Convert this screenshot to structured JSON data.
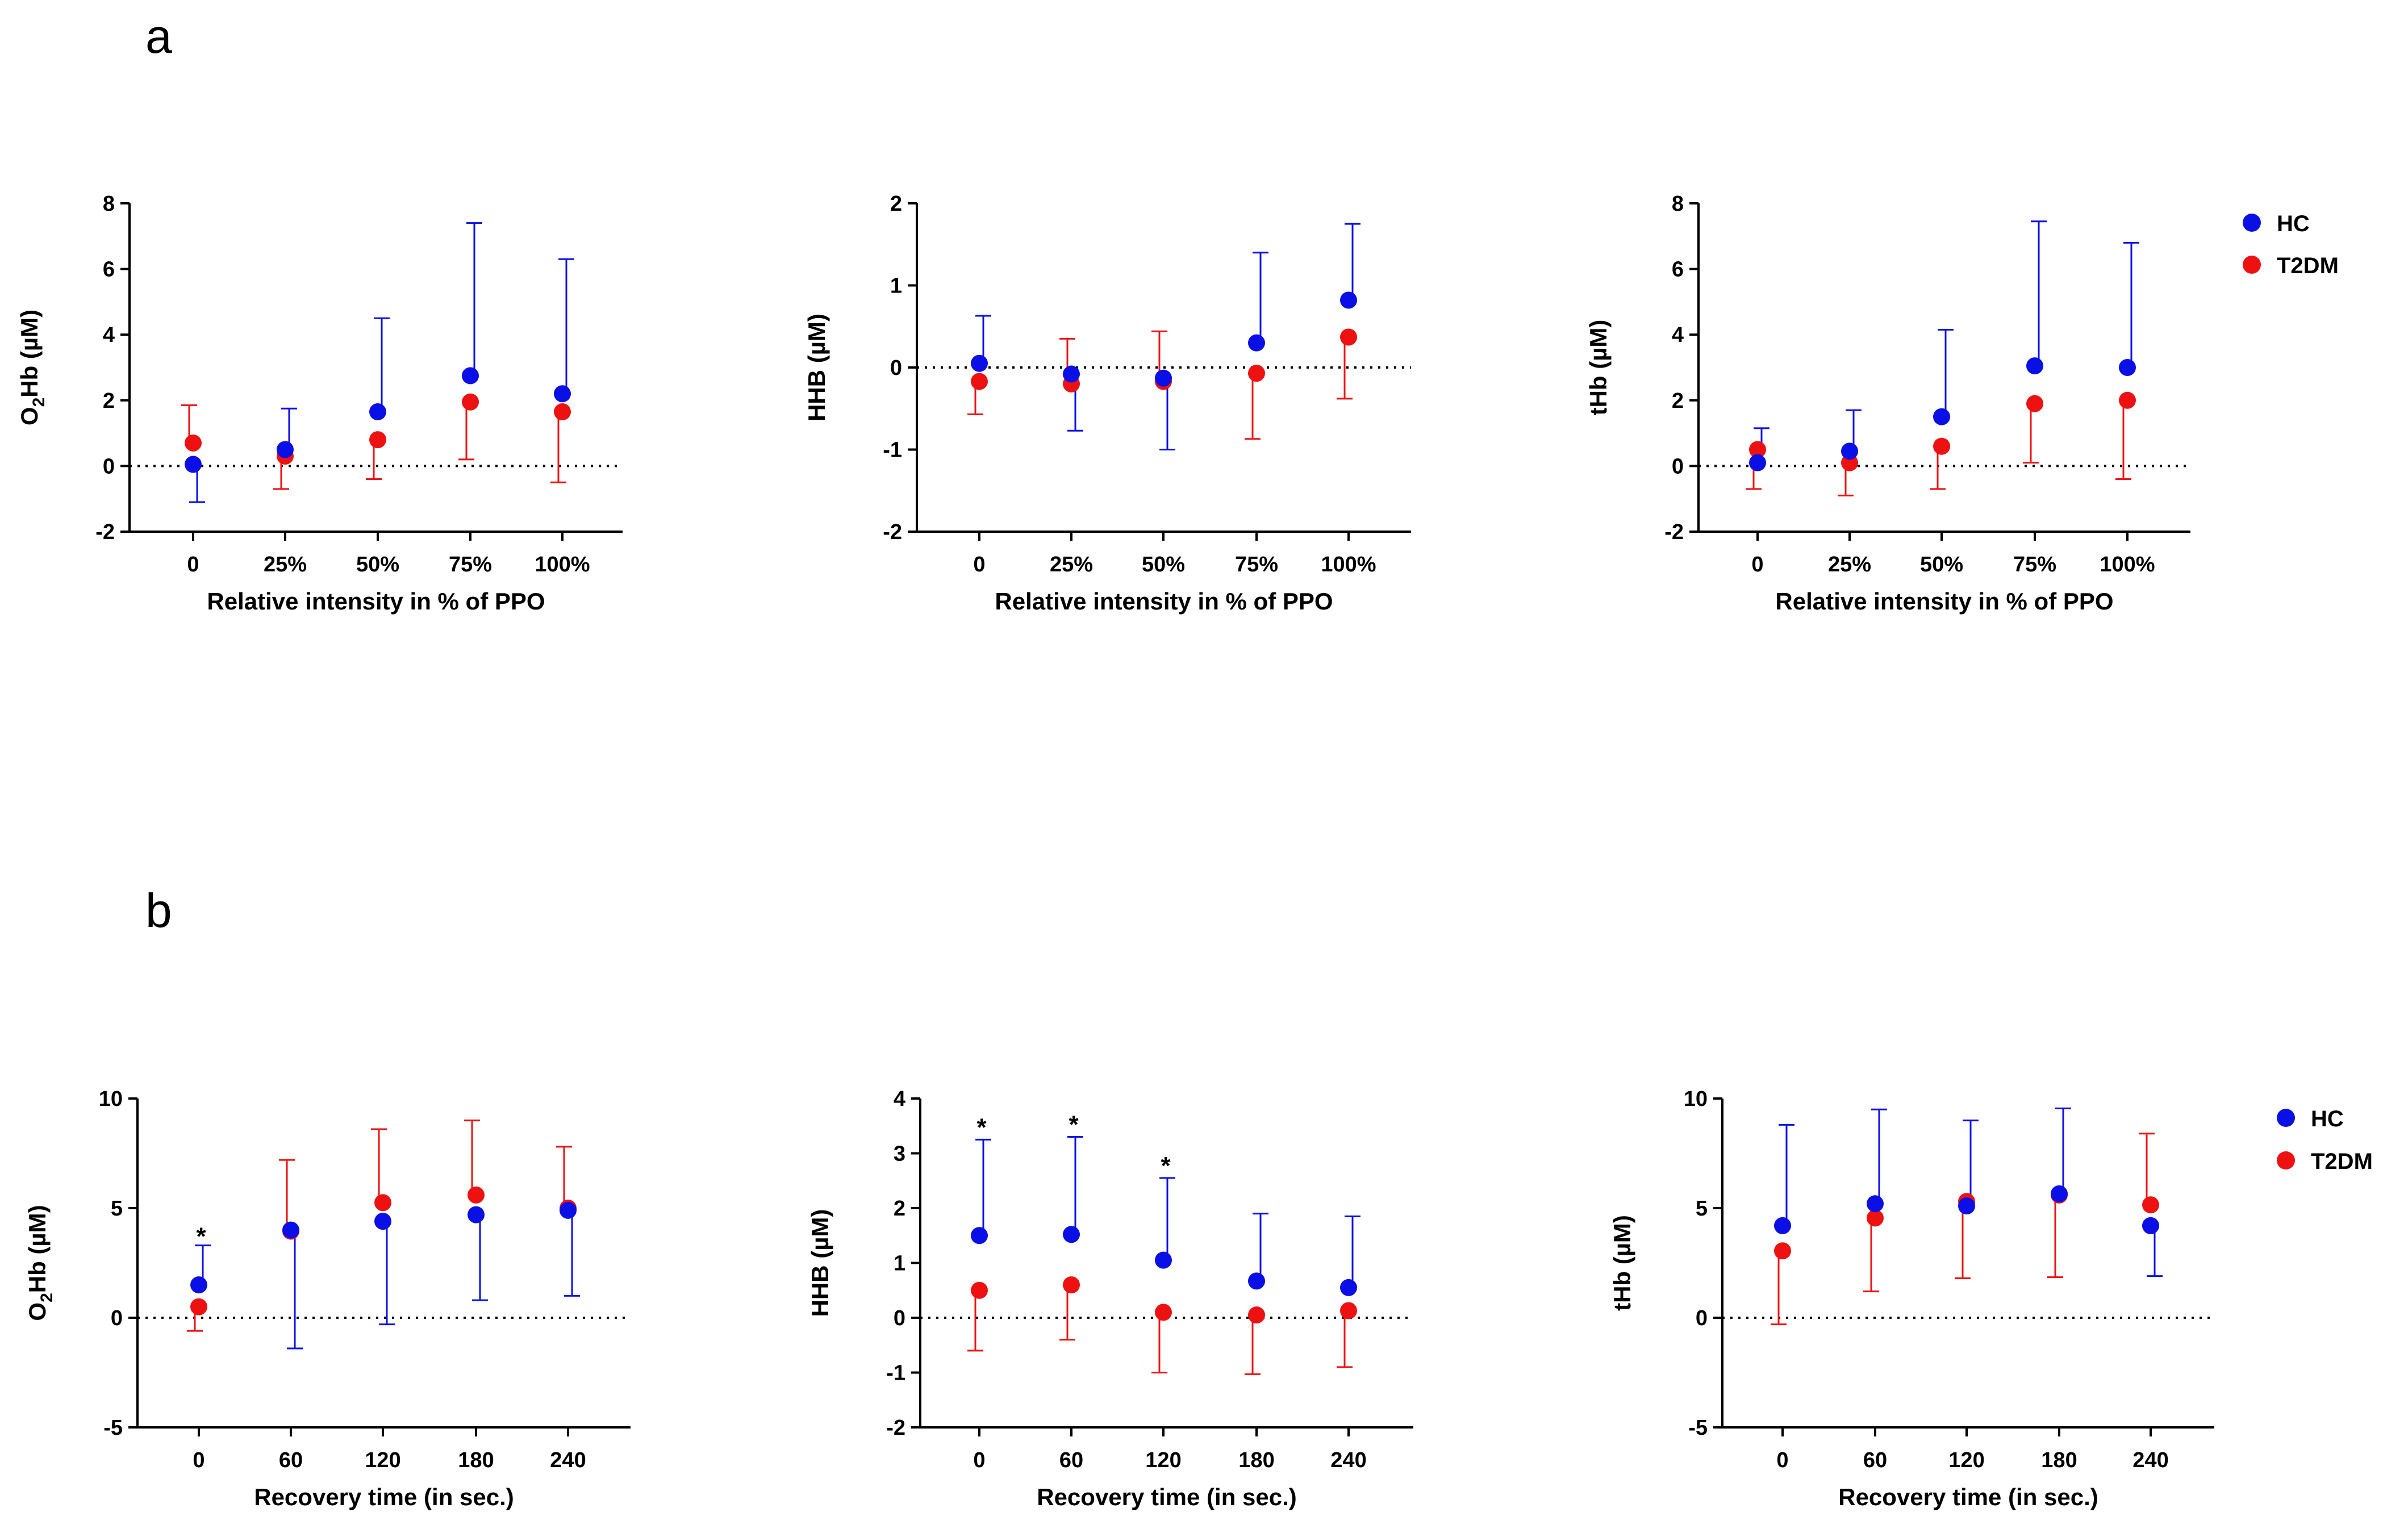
{
  "figure": {
    "panel_labels": [
      "a",
      "b"
    ],
    "legend": [
      {
        "label": "HC",
        "color": "#0a0fe6"
      },
      {
        "label": "T2DM",
        "color": "#ee1111"
      }
    ]
  },
  "chart_data": [
    {
      "id": "a1",
      "type": "scatter",
      "title": "",
      "xlabel": "Relative intensity in % of PPO",
      "ylabel": [
        "O",
        "2",
        "Hb (µM)"
      ],
      "categories": [
        "0",
        "25%",
        "50%",
        "75%",
        "100%"
      ],
      "ylim": [
        -2,
        8
      ],
      "yticks": [
        -2,
        0,
        2,
        4,
        6,
        8
      ],
      "ytick_labels": [
        "-2",
        "0",
        "2",
        "4",
        "6",
        "8"
      ],
      "reference_line": 0,
      "series": [
        {
          "name": "HC",
          "color": "#0a0fe6",
          "values": [
            0.05,
            0.5,
            1.65,
            2.75,
            2.2
          ],
          "err_low": [
            -1.1,
            null,
            null,
            null,
            null
          ],
          "err_high": [
            null,
            1.75,
            4.5,
            7.4,
            6.3
          ]
        },
        {
          "name": "T2DM",
          "color": "#ee1111",
          "values": [
            0.7,
            0.3,
            0.8,
            1.95,
            1.65
          ],
          "err_low": [
            null,
            -0.7,
            -0.4,
            0.2,
            -0.5
          ],
          "err_high": [
            1.85,
            null,
            null,
            null,
            null
          ]
        }
      ],
      "significance": []
    },
    {
      "id": "a2",
      "type": "scatter",
      "title": "",
      "xlabel": "Relative intensity in % of PPO",
      "ylabel": [
        "HHB (µM)"
      ],
      "categories": [
        "0",
        "25%",
        "50%",
        "75%",
        "100%"
      ],
      "ylim": [
        -2,
        2
      ],
      "yticks": [
        -2,
        -1,
        0,
        1,
        2
      ],
      "ytick_labels": [
        "-2",
        "-1",
        "0",
        "1",
        "2"
      ],
      "reference_line": 0,
      "series": [
        {
          "name": "HC",
          "color": "#0a0fe6",
          "values": [
            0.05,
            -0.08,
            -0.13,
            0.3,
            0.82
          ],
          "err_low": [
            null,
            -0.77,
            -1.0,
            null,
            null
          ],
          "err_high": [
            0.63,
            null,
            null,
            1.4,
            1.75
          ]
        },
        {
          "name": "T2DM",
          "color": "#ee1111",
          "values": [
            -0.17,
            -0.2,
            -0.17,
            -0.07,
            0.37
          ],
          "err_low": [
            -0.57,
            null,
            null,
            -0.87,
            -0.38
          ],
          "err_high": [
            null,
            0.35,
            0.44,
            null,
            null
          ]
        }
      ],
      "significance": []
    },
    {
      "id": "a3",
      "type": "scatter",
      "title": "",
      "xlabel": "Relative intensity in % of PPO",
      "ylabel": [
        "tHb (µM)"
      ],
      "categories": [
        "0",
        "25%",
        "50%",
        "75%",
        "100%"
      ],
      "ylim": [
        -2,
        8
      ],
      "yticks": [
        -2,
        0,
        2,
        4,
        6,
        8
      ],
      "ytick_labels": [
        "-2",
        "0",
        "2",
        "4",
        "6",
        "8"
      ],
      "reference_line": 0,
      "series": [
        {
          "name": "HC",
          "color": "#0a0fe6",
          "values": [
            0.1,
            0.45,
            1.5,
            3.05,
            3.0
          ],
          "err_low": [
            null,
            null,
            null,
            null,
            null
          ],
          "err_high": [
            1.15,
            1.7,
            4.15,
            7.45,
            6.8
          ]
        },
        {
          "name": "T2DM",
          "color": "#ee1111",
          "values": [
            0.5,
            0.1,
            0.6,
            1.9,
            2.0
          ],
          "err_low": [
            -0.7,
            -0.9,
            -0.7,
            0.1,
            -0.4
          ],
          "err_high": [
            null,
            null,
            null,
            null,
            null
          ]
        }
      ],
      "significance": []
    },
    {
      "id": "b1",
      "type": "scatter",
      "title": "",
      "xlabel": "Recovery time (in sec.)",
      "ylabel": [
        "O",
        "2",
        "Hb (µM)"
      ],
      "categories": [
        "0",
        "60",
        "120",
        "180",
        "240"
      ],
      "ylim": [
        -5,
        10
      ],
      "yticks": [
        -5,
        0,
        5,
        10
      ],
      "ytick_labels": [
        "-5",
        "0",
        "5",
        "10"
      ],
      "reference_line": 0,
      "series": [
        {
          "name": "HC",
          "color": "#0a0fe6",
          "values": [
            1.5,
            4.0,
            4.4,
            4.7,
            4.9
          ],
          "err_low": [
            null,
            -1.4,
            -0.3,
            0.8,
            1.0
          ],
          "err_high": [
            3.3,
            null,
            null,
            null,
            null
          ]
        },
        {
          "name": "T2DM",
          "color": "#ee1111",
          "values": [
            0.5,
            3.95,
            5.25,
            5.6,
            5.0
          ],
          "err_low": [
            -0.6,
            null,
            null,
            null,
            null
          ],
          "err_high": [
            null,
            7.2,
            8.6,
            9.0,
            7.8
          ]
        }
      ],
      "significance": [
        {
          "category": "0",
          "text": "*",
          "y": 3.9
        }
      ]
    },
    {
      "id": "b2",
      "type": "scatter",
      "title": "",
      "xlabel": "Recovery time (in sec.)",
      "ylabel": [
        "HHB (µM)"
      ],
      "categories": [
        "0",
        "60",
        "120",
        "180",
        "240"
      ],
      "ylim": [
        -2,
        4
      ],
      "yticks": [
        -2,
        -1,
        0,
        1,
        2,
        3,
        4
      ],
      "ytick_labels": [
        "-2",
        "-1",
        "0",
        "1",
        "2",
        "3",
        "4"
      ],
      "reference_line": 0,
      "series": [
        {
          "name": "HC",
          "color": "#0a0fe6",
          "values": [
            1.5,
            1.52,
            1.05,
            0.67,
            0.55
          ],
          "err_low": [
            null,
            null,
            null,
            null,
            null
          ],
          "err_high": [
            3.25,
            3.3,
            2.55,
            1.9,
            1.85
          ]
        },
        {
          "name": "T2DM",
          "color": "#ee1111",
          "values": [
            0.5,
            0.6,
            0.1,
            0.05,
            0.13
          ],
          "err_low": [
            -0.6,
            -0.4,
            -1.0,
            -1.03,
            -0.9
          ],
          "err_high": [
            null,
            null,
            null,
            null,
            null
          ]
        }
      ],
      "significance": [
        {
          "category": "0",
          "text": "*",
          "y": 3.55
        },
        {
          "category": "60",
          "text": "*",
          "y": 3.6
        },
        {
          "category": "120",
          "text": "*",
          "y": 2.85
        }
      ]
    },
    {
      "id": "b3",
      "type": "scatter",
      "title": "",
      "xlabel": "Recovery time (in sec.)",
      "ylabel": [
        "tHb (µM)"
      ],
      "categories": [
        "0",
        "60",
        "120",
        "180",
        "240"
      ],
      "ylim": [
        -5,
        10
      ],
      "yticks": [
        -5,
        0,
        5,
        10
      ],
      "ytick_labels": [
        "-5",
        "0",
        "5",
        "10"
      ],
      "reference_line": 0,
      "series": [
        {
          "name": "HC",
          "color": "#0a0fe6",
          "values": [
            4.2,
            5.2,
            5.1,
            5.65,
            4.2
          ],
          "err_low": [
            null,
            null,
            null,
            null,
            1.9
          ],
          "err_high": [
            8.8,
            9.5,
            9.0,
            9.55,
            null
          ]
        },
        {
          "name": "T2DM",
          "color": "#ee1111",
          "values": [
            3.05,
            4.55,
            5.3,
            5.6,
            5.15
          ],
          "err_low": [
            -0.3,
            1.2,
            1.8,
            1.85,
            null
          ],
          "err_high": [
            null,
            null,
            null,
            null,
            8.4
          ]
        }
      ],
      "significance": []
    }
  ]
}
